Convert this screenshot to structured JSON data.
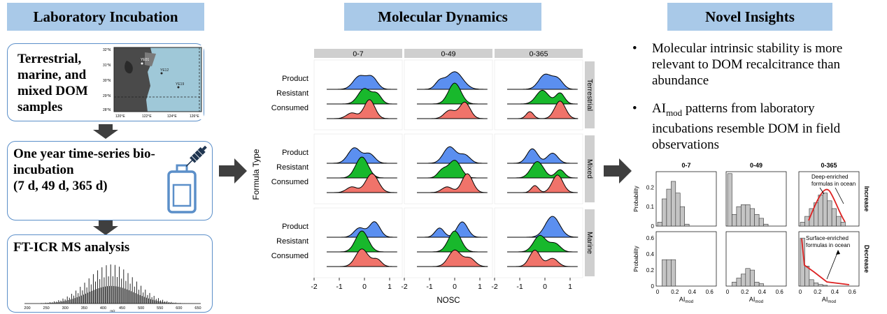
{
  "left": {
    "header": "Laboratory Incubation",
    "box1": {
      "lines": [
        "Terrestrial,",
        "marine, and",
        "mixed DOM",
        "samples"
      ]
    },
    "map": {
      "lat_labels": [
        "32°N",
        "31°N",
        "30°N",
        "29°N",
        "28°N"
      ],
      "lon_labels": [
        "120°E",
        "122°E",
        "124°E",
        "126°E"
      ],
      "stations": [
        "YE01",
        "YE12",
        "YE19"
      ]
    },
    "box2": {
      "lines": [
        "One year time-series bio-",
        "incubation",
        "(7 d, 49 d, 365 d)"
      ]
    },
    "box3": {
      "title": "FT-ICR MS analysis",
      "x_ticks": [
        "200",
        "250",
        "300",
        "350",
        "400",
        "450",
        "500",
        "550",
        "600",
        "650"
      ],
      "x_label": "m/z"
    }
  },
  "middle": {
    "header": "Molecular Dynamics",
    "columns": [
      "0-7",
      "0-49",
      "0-365"
    ],
    "rows": [
      "Terrestrial",
      "Mixed",
      "Marine"
    ],
    "types": [
      "Product",
      "Resistant",
      "Consumed"
    ],
    "y_label": "Formula Type",
    "x_label": "NOSC",
    "x_ticks": [
      "-2",
      "-1",
      "0",
      "1"
    ],
    "colors": {
      "Product": "#5b8ff0",
      "Resistant": "#18b82c",
      "Consumed": "#f0736a"
    }
  },
  "right": {
    "header": "Novel Insights",
    "bullets": [
      {
        "text": "Molecular intrinsic stability is more relevant to DOM recalcitrance than abundance"
      },
      {
        "pre": "AI",
        "sub": "mod",
        "post": " patterns from laboratory incubations resemble DOM in field observations"
      }
    ],
    "hist": {
      "columns": [
        "0-7",
        "0-49",
        "0-365"
      ],
      "rows": [
        "Increase",
        "Decrease"
      ],
      "y_label": "Probability",
      "x_label_pre": "AI",
      "x_label_sub": "mod",
      "x_ticks": [
        "0",
        "0.2",
        "0.4",
        "0.6"
      ],
      "y_ticks_top": [
        "0",
        "0.1",
        "0.2"
      ],
      "y_ticks_bottom": [
        "0",
        "0.2",
        "0.4",
        "0.6"
      ],
      "ann_top": [
        "Deep-enriched",
        "formulas in ocean"
      ],
      "ann_bottom": [
        "Surface-enriched",
        "formulas in ocean"
      ],
      "bins_top": [
        [
          0.02,
          0.14,
          0.19,
          0.23,
          0.17,
          0.1,
          0.01,
          0,
          0,
          0,
          0,
          0
        ],
        [
          0.27,
          0.06,
          0.1,
          0.11,
          0.11,
          0.09,
          0.06,
          0.04,
          0.01,
          0,
          0,
          0
        ],
        [
          0.02,
          0.05,
          0.09,
          0.12,
          0.16,
          0.17,
          0.13,
          0.09,
          0.05,
          0.02,
          0,
          0
        ]
      ],
      "bins_bottom": [
        [
          0,
          0.33,
          0.33,
          0.33,
          0,
          0,
          0,
          0,
          0,
          0,
          0,
          0
        ],
        [
          0,
          0.05,
          0.1,
          0.15,
          0.22,
          0.2,
          0.05,
          0.03,
          0,
          0,
          0,
          0
        ],
        [
          0.6,
          0.25,
          0.08,
          0.04,
          0.02,
          0.01,
          0,
          0,
          0,
          0,
          0,
          0
        ]
      ]
    }
  }
}
